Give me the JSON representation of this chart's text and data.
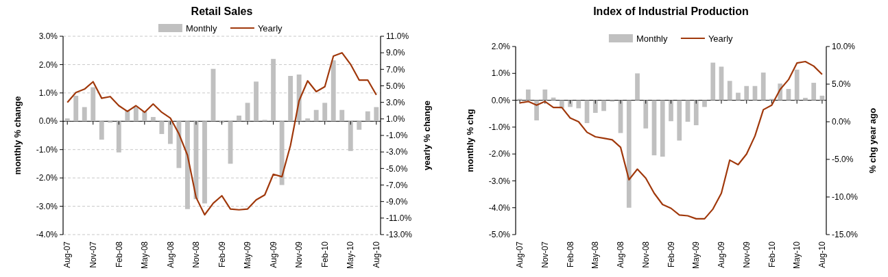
{
  "chart_data": [
    {
      "type": "bar",
      "title": "Retail Sales",
      "ylabel": "monthly % change",
      "y2label": "yearly % change",
      "categories": [
        "Aug-07",
        null,
        null,
        "Nov-07",
        null,
        null,
        "Feb-08",
        null,
        null,
        "May-08",
        null,
        null,
        "Aug-08",
        null,
        null,
        "Nov-08",
        null,
        null,
        "Feb-09",
        null,
        null,
        "May-09",
        null,
        null,
        "Aug-09",
        null,
        null,
        "Nov-09",
        null,
        null,
        "Feb-10",
        null,
        null,
        "May-10",
        null,
        null,
        "Aug-10"
      ],
      "series": [
        {
          "name": "Monthly",
          "color": "#c0c0c0",
          "values": [
            0.1,
            0.9,
            0.5,
            1.2,
            -0.65,
            -0.05,
            -1.1,
            0.4,
            0.5,
            0.35,
            0.15,
            -0.45,
            -0.8,
            -1.65,
            -3.1,
            -2.75,
            -2.9,
            1.85,
            -0.05,
            -1.5,
            0.2,
            0.65,
            1.4,
            0.05,
            2.2,
            -2.25,
            1.6,
            1.65,
            0.1,
            0.4,
            0.65,
            2.15,
            0.4,
            -1.05,
            -0.3,
            0.35,
            0.5
          ]
        },
        {
          "name": "Yearly",
          "type": "line",
          "axis": "y2",
          "color": "#a0380b",
          "values": [
            3.0,
            4.2,
            4.6,
            5.5,
            3.5,
            3.7,
            2.6,
            1.9,
            2.6,
            1.8,
            2.8,
            1.8,
            1.1,
            -0.8,
            -3.4,
            -8.5,
            -10.6,
            -9.2,
            -8.3,
            -9.9,
            -10.0,
            -9.9,
            -8.8,
            -8.2,
            -5.7,
            -6.0,
            -2.2,
            3.2,
            5.6,
            4.3,
            4.9,
            8.6,
            9.0,
            7.6,
            5.7,
            5.7,
            3.9
          ]
        }
      ],
      "ylim": [
        -4,
        3
      ],
      "yticks": [
        {
          "value": 3,
          "label": "3.0%"
        },
        {
          "value": 2,
          "label": "2.0%"
        },
        {
          "value": 1,
          "label": "1.0%"
        },
        {
          "value": 0,
          "label": "0.0%"
        },
        {
          "value": -1,
          "label": "-1.0%"
        },
        {
          "value": -2,
          "label": "-2.0%"
        },
        {
          "value": -3,
          "label": "-3.0%"
        },
        {
          "value": -4,
          "label": "-4.0%"
        }
      ],
      "y2lim": [
        -13,
        11
      ],
      "y2ticks": [
        {
          "value": 11,
          "label": "11.0%"
        },
        {
          "value": 9,
          "label": "9.0%"
        },
        {
          "value": 7,
          "label": "7.0%"
        },
        {
          "value": 5,
          "label": "5.0%"
        },
        {
          "value": 3,
          "label": "3.0%"
        },
        {
          "value": 1,
          "label": "1.0%"
        },
        {
          "value": -1,
          "label": "-1.0%"
        },
        {
          "value": -3,
          "label": "-3.0%"
        },
        {
          "value": -5,
          "label": "-5.0%"
        },
        {
          "value": -7,
          "label": "-7.0%"
        },
        {
          "value": -9,
          "label": "-9.0%"
        },
        {
          "value": -11,
          "label": "-11.0%"
        },
        {
          "value": -13,
          "label": "-13.0%"
        }
      ],
      "grid": "y",
      "legend": "top"
    },
    {
      "type": "bar",
      "title": "Index of Industrial Production",
      "ylabel": "monthly % chg",
      "y2label": "% chg year ago",
      "categories": [
        "Aug-07",
        null,
        null,
        "Nov-07",
        null,
        null,
        "Feb-08",
        null,
        null,
        "May-08",
        null,
        null,
        "Aug-08",
        null,
        null,
        "Nov-08",
        null,
        null,
        "Feb-09",
        null,
        null,
        "May-09",
        null,
        null,
        "Aug-09",
        null,
        null,
        "Nov-09",
        null,
        null,
        "Feb-10",
        null,
        null,
        "May-10",
        null,
        null,
        "Aug-10"
      ],
      "series": [
        {
          "name": "Monthly",
          "color": "#c0c0c0",
          "values": [
            0.05,
            0.4,
            -0.75,
            0.4,
            0.1,
            -0.3,
            -0.25,
            -0.3,
            -0.85,
            -0.47,
            -0.4,
            -0.05,
            -1.22,
            -4.0,
            1.0,
            -1.05,
            -2.05,
            -2.1,
            -0.78,
            -1.5,
            -0.8,
            -0.93,
            -0.25,
            1.4,
            1.25,
            0.72,
            0.28,
            0.53,
            0.53,
            1.03,
            0.05,
            0.62,
            0.42,
            1.14,
            0.09,
            0.65,
            0.17
          ]
        },
        {
          "name": "Yearly",
          "type": "line",
          "axis": "y2",
          "color": "#a0380b",
          "values": [
            2.5,
            2.7,
            2.2,
            2.7,
            1.9,
            1.9,
            0.5,
            0.0,
            -1.4,
            -2.0,
            -2.2,
            -2.4,
            -3.4,
            -7.7,
            -6.3,
            -7.5,
            -9.5,
            -11.0,
            -11.5,
            -12.4,
            -12.5,
            -12.9,
            -12.9,
            -11.6,
            -9.5,
            -5.1,
            -5.7,
            -4.3,
            -1.9,
            1.6,
            2.2,
            4.3,
            5.6,
            7.8,
            8.0,
            7.4,
            6.3
          ]
        }
      ],
      "ylim": [
        -5,
        2
      ],
      "yticks": [
        {
          "value": 2,
          "label": "2.0%"
        },
        {
          "value": 1,
          "label": "1.0%"
        },
        {
          "value": 0,
          "label": "0.0%"
        },
        {
          "value": -1,
          "label": "-1.0%"
        },
        {
          "value": -2,
          "label": "-2.0%"
        },
        {
          "value": -3,
          "label": "-3.0%"
        },
        {
          "value": -4,
          "label": "-4.0%"
        },
        {
          "value": -5,
          "label": "-5.0%"
        }
      ],
      "y2lim": [
        -15,
        10
      ],
      "y2ticks": [
        {
          "value": 10,
          "label": "10.0%"
        },
        {
          "value": 5,
          "label": "5.0%"
        },
        {
          "value": 0,
          "label": "0.0%"
        },
        {
          "value": -5,
          "label": "-5.0%"
        },
        {
          "value": -10,
          "label": "-10.0%"
        },
        {
          "value": -15,
          "label": "-15.0%"
        }
      ],
      "legend": "top"
    }
  ]
}
